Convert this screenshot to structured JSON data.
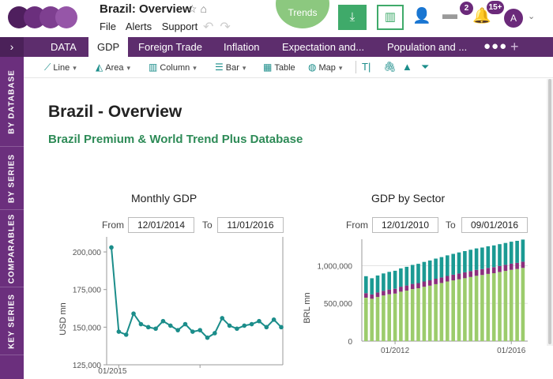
{
  "app": {
    "title": "Brazil: Overview",
    "menu": [
      "File",
      "Alerts",
      "Support"
    ],
    "trends_label": "Trends",
    "messages_count": "2",
    "notifications_count": "15+",
    "avatar_initial": "A"
  },
  "tabs": [
    {
      "label": "DATA",
      "active": false
    },
    {
      "label": "GDP",
      "active": true
    },
    {
      "label": "Foreign Trade",
      "active": false
    },
    {
      "label": "Inflation",
      "active": false
    },
    {
      "label": "Expectation and...",
      "active": false
    },
    {
      "label": "Population and ...",
      "active": false
    }
  ],
  "toolbar": [
    {
      "label": "Line",
      "icon": "line-chart-icon"
    },
    {
      "label": "Area",
      "icon": "area-chart-icon"
    },
    {
      "label": "Column",
      "icon": "column-chart-icon"
    },
    {
      "label": "Bar",
      "icon": "bar-chart-icon"
    },
    {
      "label": "Table",
      "icon": "table-icon"
    },
    {
      "label": "Map",
      "icon": "globe-icon"
    }
  ],
  "sidebar": [
    "BY DATABASE",
    "BY SERIES",
    "COMPARABLES",
    "KEY SERIES"
  ],
  "page": {
    "title": "Brazil - Overview",
    "subtitle": "Brazil Premium & World Trend Plus Database"
  },
  "monthly": {
    "title": "Monthly GDP",
    "from_label": "From",
    "to_label": "To",
    "from": "12/01/2014",
    "to": "11/01/2016"
  },
  "sector": {
    "title": "GDP by Sector",
    "from_label": "From",
    "to_label": "To",
    "from": "12/01/2010",
    "to": "09/01/2016"
  },
  "colors": {
    "brand": "#5d2d6d",
    "accent_green": "#3faa6a",
    "line": "#1b8d8a",
    "bar_base": "#9ccc6c",
    "bar_mid": "#8b2f7d",
    "bar_top": "#1b9a93"
  },
  "chart_data": [
    {
      "type": "line",
      "ylabel": "USD mn",
      "yticks": [
        "125,000",
        "150,000",
        "175,000",
        "200,000"
      ],
      "ylim": [
        125000,
        210000
      ],
      "xtick_labels": [
        "01/2015"
      ],
      "series": [
        {
          "values": [
            203000,
            147000,
            145000,
            159000,
            152000,
            150000,
            149000,
            154000,
            151000,
            148000,
            152000,
            147000,
            148000,
            143000,
            146000,
            156000,
            151000,
            149000,
            151000,
            152000,
            154000,
            150000,
            155000,
            150000
          ]
        }
      ]
    },
    {
      "type": "bar",
      "ylabel": "BRL mn",
      "yticks": [
        "0",
        "500,000",
        "1,000,000"
      ],
      "ylim": [
        0,
        1350000
      ],
      "xtick_labels": [
        "01/2012",
        "01/2016"
      ],
      "grid": true,
      "series": [
        {
          "values": [
            575000,
            560000,
            585000,
            605000,
            620000,
            630000,
            655000,
            670000,
            690000,
            700000,
            720000,
            735000,
            755000,
            770000,
            790000,
            805000,
            820000,
            835000,
            850000,
            865000,
            875000,
            890000,
            900000,
            915000,
            930000,
            945000,
            955000,
            970000
          ]
        },
        {
          "values": [
            60000,
            58000,
            60000,
            62000,
            63000,
            64000,
            66000,
            67000,
            68000,
            69000,
            70000,
            71000,
            72000,
            73000,
            74000,
            75000,
            76000,
            77000,
            78000,
            79000,
            79000,
            80000,
            80000,
            81000,
            81000,
            82000,
            82000,
            83000
          ]
        },
        {
          "values": [
            225000,
            215000,
            225000,
            230000,
            235000,
            238000,
            243000,
            248000,
            252000,
            256000,
            260000,
            263000,
            267000,
            270000,
            273000,
            276000,
            279000,
            281000,
            283000,
            285000,
            286000,
            287000,
            288000,
            289000,
            290000,
            291000,
            292000,
            293000
          ]
        }
      ]
    }
  ]
}
